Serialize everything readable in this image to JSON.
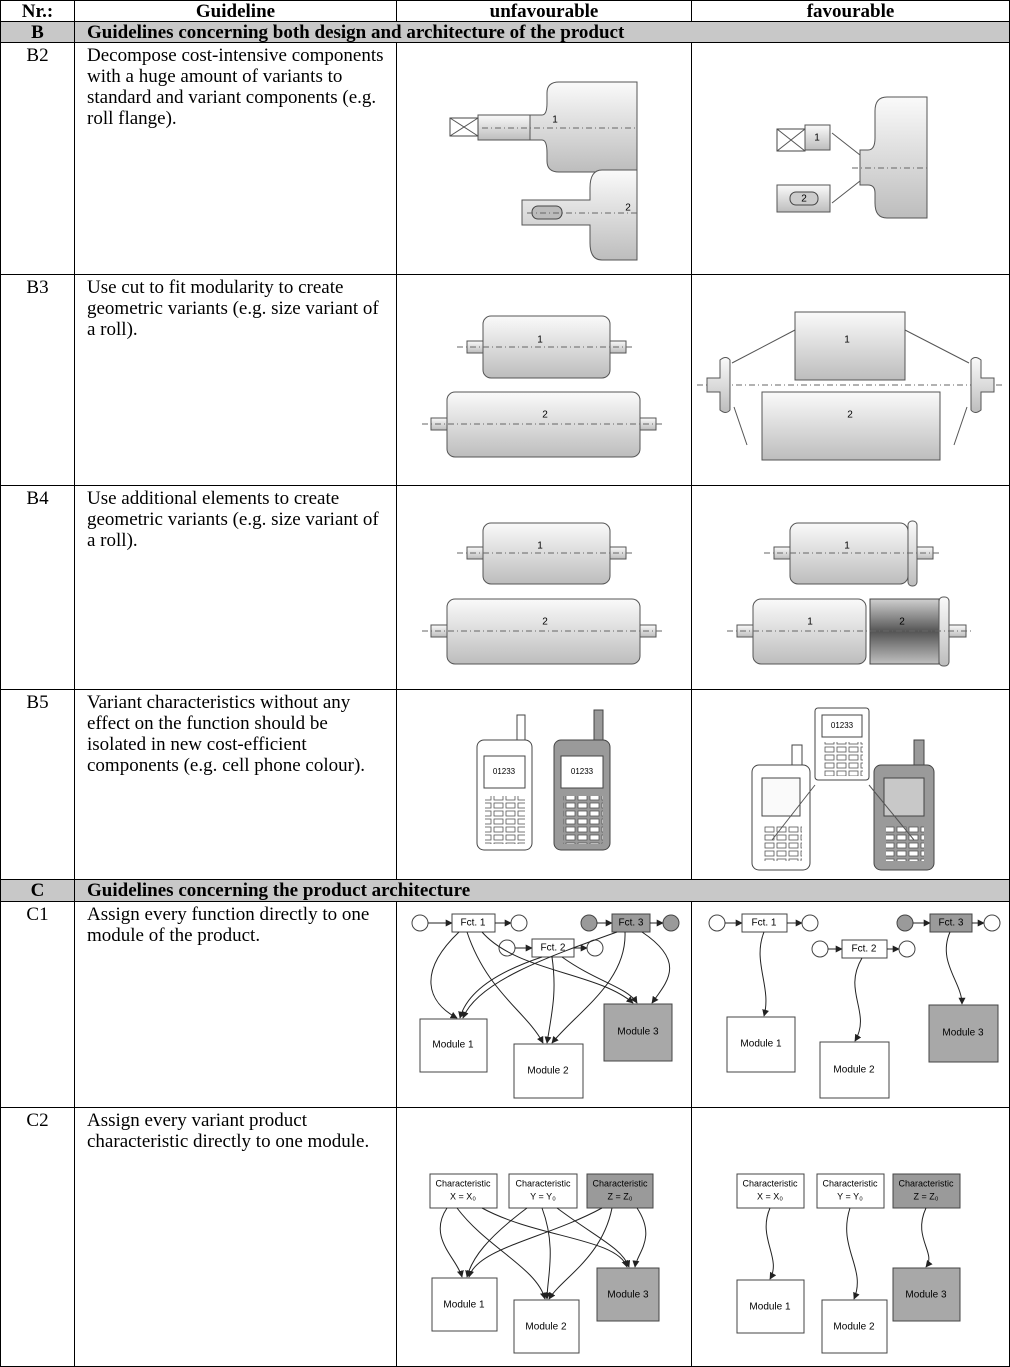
{
  "header": [
    "Nr.:",
    "Guideline",
    "unfavourable",
    "favourable"
  ],
  "sections": [
    {
      "id": "B",
      "title": "Guidelines concerning both design and architecture of the product",
      "rows": [
        {
          "nr": "B2",
          "text": "Decompose cost-intensive components with a huge amount of variants to standard and variant components (e.g. roll flange).",
          "unfavourable": [
            "1",
            "2"
          ],
          "favourable": [
            "1",
            "2"
          ]
        },
        {
          "nr": "B3",
          "text": "Use cut to fit modularity to create geometric variants (e.g. size variant of a roll).",
          "unfavourable": [
            "1",
            "2"
          ],
          "favourable": [
            "1",
            "2"
          ]
        },
        {
          "nr": "B4",
          "text": "Use additional elements to create geometric variants (e.g. size variant of a roll).",
          "unfavourable": [
            "1",
            "2"
          ],
          "favourable": [
            "1",
            "1",
            "2"
          ]
        },
        {
          "nr": "B5",
          "text": "Variant characteristics without any effect on the function should be isolated in new cost-efficient components (e.g. cell phone colour).",
          "unfavourable": [
            "01233",
            "01233"
          ],
          "favourable": [
            "01233"
          ]
        }
      ]
    },
    {
      "id": "C",
      "title": "Guidelines concerning the product architecture",
      "rows": [
        {
          "nr": "C1",
          "text": "Assign every function directly to one module of the product.",
          "unfavourable": [
            "Fct. 1",
            "Fct. 2",
            "Fct. 3",
            "Module 1",
            "Module 2",
            "Module 3"
          ],
          "favourable": [
            "Fct. 1",
            "Fct. 2",
            "Fct. 3",
            "Module 1",
            "Module 2",
            "Module 3"
          ]
        },
        {
          "nr": "C2",
          "text": "Assign every variant product characteristic directly to one module.",
          "unfavourable": [
            "Characteristic",
            "X = X₀",
            "Characteristic",
            "Y = Y₀",
            "Characteristic",
            "Z = Z₀",
            "Module 1",
            "Module 2",
            "Module 3"
          ],
          "favourable": [
            "Characteristic",
            "X = X₀",
            "Characteristic",
            "Y = Y₀",
            "Characteristic",
            "Z = Z₀",
            "Module 1",
            "Module 2",
            "Module 3"
          ]
        }
      ]
    }
  ]
}
